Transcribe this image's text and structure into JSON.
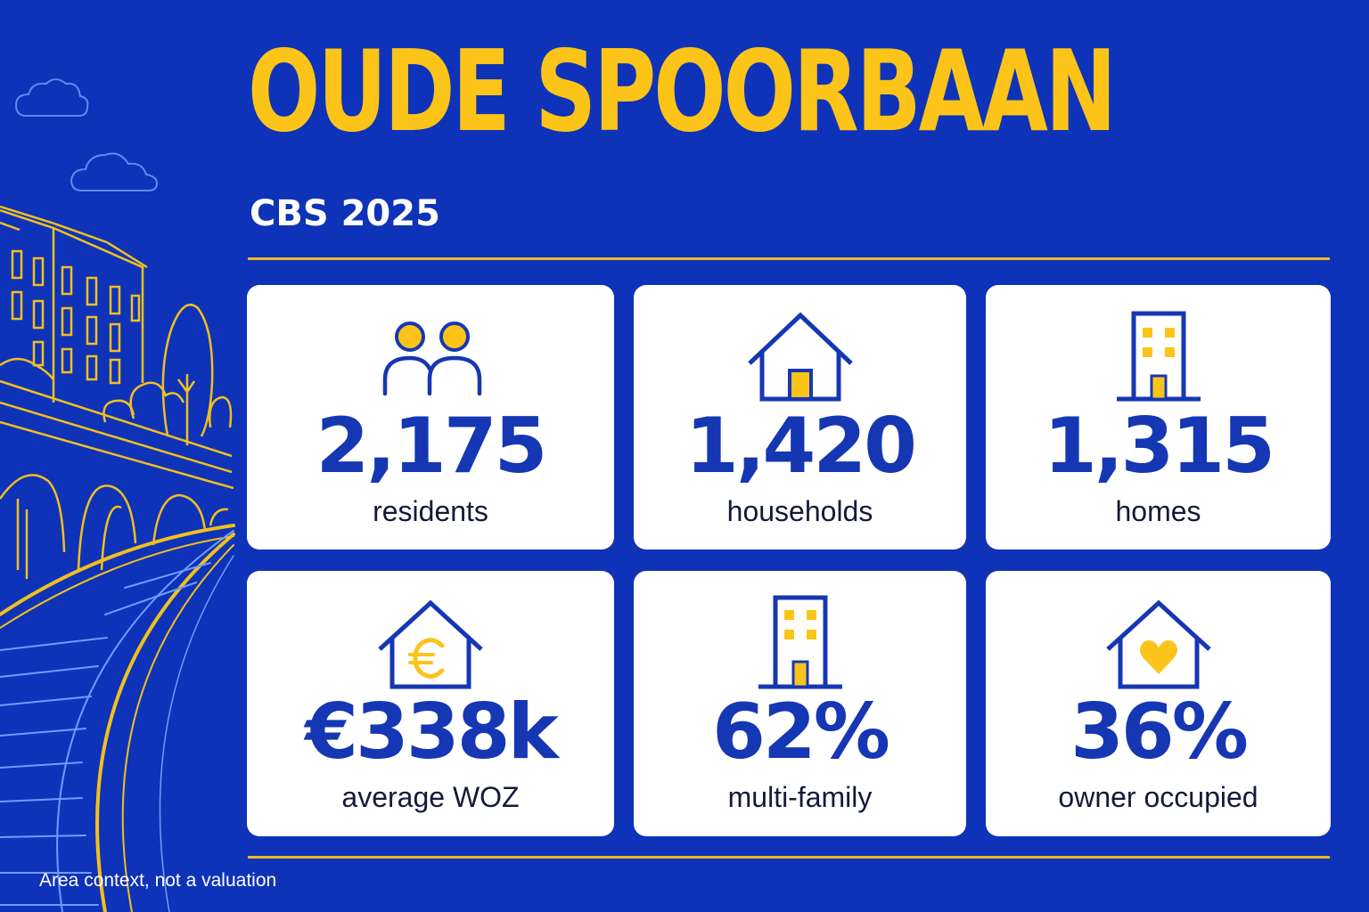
{
  "header": {
    "title": "OUDE SPOORBAAN",
    "subtitle": "CBS 2025"
  },
  "stats": [
    {
      "icon": "people-icon",
      "value": "2,175",
      "label": "residents"
    },
    {
      "icon": "house-icon",
      "value": "1,420",
      "label": "households"
    },
    {
      "icon": "building-icon",
      "value": "1,315",
      "label": "homes"
    },
    {
      "icon": "house-euro-icon",
      "value": "€338k",
      "label": "average  WOZ"
    },
    {
      "icon": "apartment-building-icon",
      "value": "62%",
      "label": "multi-family"
    },
    {
      "icon": "house-heart-icon",
      "value": "36%",
      "label": "owner occupied"
    }
  ],
  "footer": {
    "note": "Area context, not a valuation"
  },
  "colors": {
    "background": "#0e33b8",
    "accent_yellow": "#fcc419",
    "value_blue": "#1637b3",
    "card": "#ffffff"
  }
}
